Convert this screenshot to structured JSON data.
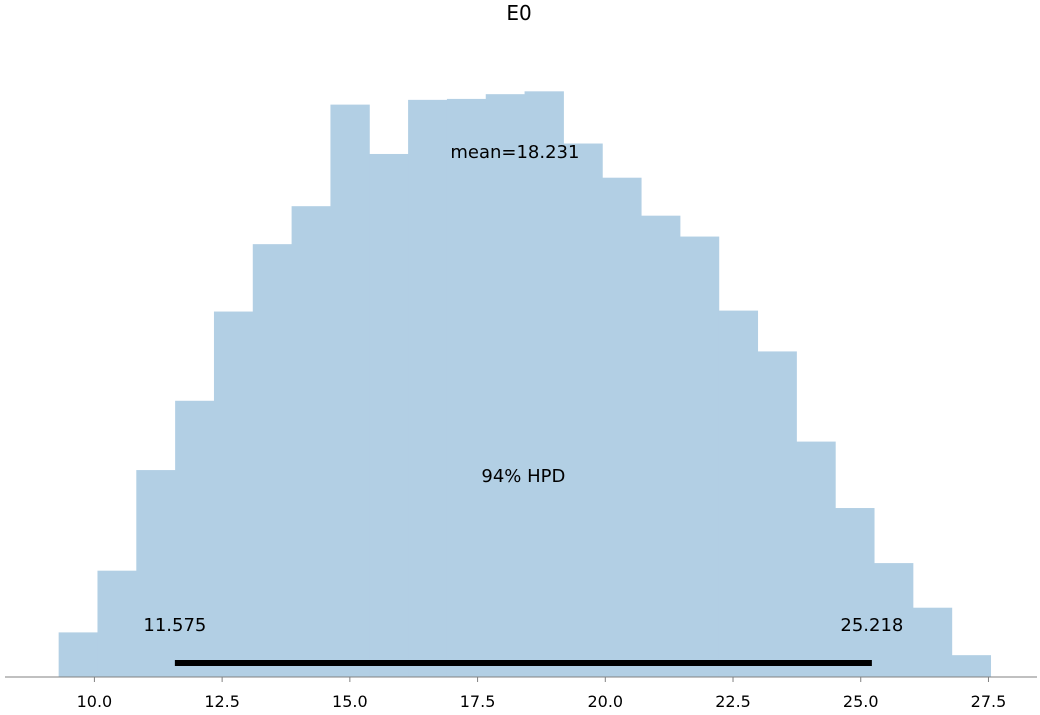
{
  "chart_data": {
    "type": "histogram",
    "title": "E0",
    "xlabel": "",
    "ylabel": "",
    "xlim": [
      8.25,
      28.45
    ],
    "bin_edges": [
      9.3,
      10.06,
      10.82,
      11.58,
      12.34,
      13.1,
      13.86,
      14.62,
      15.38,
      16.14,
      16.9,
      17.66,
      18.42,
      19.18,
      19.94,
      20.7,
      21.46,
      22.22,
      22.98,
      23.74,
      24.5,
      25.26,
      26.02,
      26.78,
      27.54
    ],
    "counts": [
      47,
      112,
      218,
      291,
      385,
      456,
      496,
      603,
      551,
      608,
      609,
      614,
      617,
      562,
      526,
      486,
      464,
      386,
      343,
      248,
      178,
      120,
      73,
      23
    ],
    "ylim_counts": [
      0,
      650
    ],
    "x_ticks": [
      10.0,
      12.5,
      15.0,
      17.5,
      20.0,
      22.5,
      25.0,
      27.5
    ],
    "x_tick_labels": [
      "10.0",
      "12.5",
      "15.0",
      "17.5",
      "20.0",
      "22.5",
      "25.0",
      "27.5"
    ],
    "mean": 18.231,
    "mean_label": "mean=18.231",
    "hpd": {
      "label": "94% HPD",
      "low": 11.575,
      "high": 25.218,
      "low_label": "11.575",
      "high_label": "25.218"
    },
    "bar_color": "#b2cfe4",
    "hpd_line_color": "#000000",
    "axis_color": "#808080",
    "grid": false,
    "y_axis_visible": false
  }
}
